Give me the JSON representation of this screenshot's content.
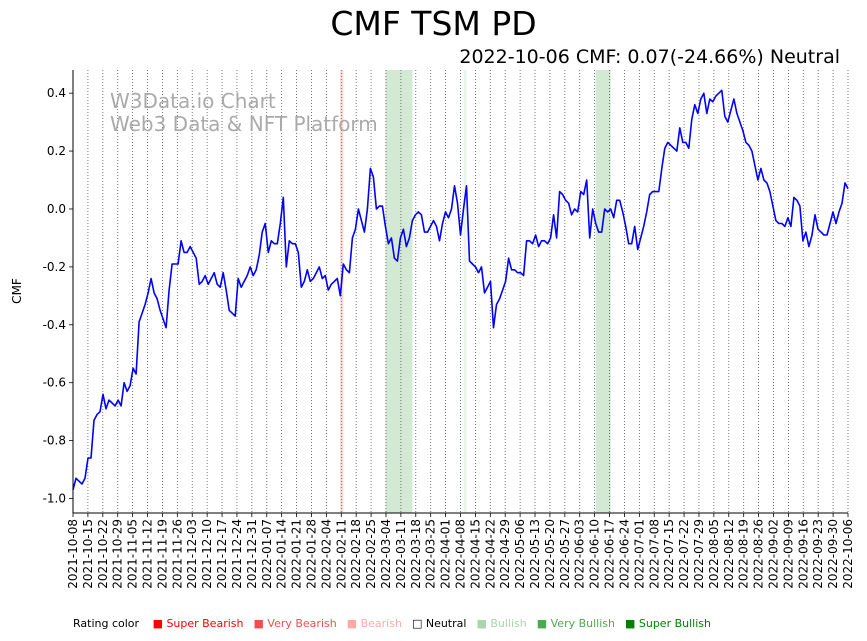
{
  "chart_data": {
    "type": "line",
    "title": "CMF TSM PD",
    "subtitle": "2022-10-06 CMF: 0.07(-24.66%) Neutral",
    "ylabel": "CMF",
    "xlabel": "",
    "ylim": [
      -1.05,
      0.48
    ],
    "yticks": [
      -1.0,
      -0.8,
      -0.6,
      -0.4,
      -0.2,
      0.0,
      0.2,
      0.4
    ],
    "ytick_labels": [
      "-1.0",
      "-0.8",
      "-0.6",
      "-0.4",
      "-0.2",
      "0.0",
      "0.2",
      "0.4"
    ],
    "x_start": "2021-10-08",
    "x_end": "2022-10-06",
    "xtick_labels": [
      "2021-10-08",
      "2021-10-15",
      "2021-10-22",
      "2021-10-29",
      "2021-11-05",
      "2021-11-12",
      "2021-11-19",
      "2021-11-26",
      "2021-12-03",
      "2021-12-10",
      "2021-12-17",
      "2021-12-24",
      "2021-12-31",
      "2022-01-07",
      "2022-01-14",
      "2022-01-21",
      "2022-01-28",
      "2022-02-04",
      "2022-02-11",
      "2022-02-18",
      "2022-02-25",
      "2022-03-04",
      "2022-03-11",
      "2022-03-18",
      "2022-03-25",
      "2022-04-01",
      "2022-04-08",
      "2022-04-15",
      "2022-04-22",
      "2022-04-29",
      "2022-05-06",
      "2022-05-13",
      "2022-05-20",
      "2022-05-27",
      "2022-06-03",
      "2022-06-10",
      "2022-06-17",
      "2022-06-24",
      "2022-07-01",
      "2022-07-08",
      "2022-07-15",
      "2022-07-22",
      "2022-07-29",
      "2022-08-05",
      "2022-08-12",
      "2022-08-19",
      "2022-08-26",
      "2022-09-02",
      "2022-09-09",
      "2022-09-16",
      "2022-09-23",
      "2022-09-30",
      "2022-10-06"
    ],
    "series": [
      {
        "name": "CMF",
        "color": "#0000ff",
        "points": [
          [
            0,
            -0.97
          ],
          [
            1,
            -0.93
          ],
          [
            2,
            -0.94
          ],
          [
            3,
            -0.95
          ],
          [
            4,
            -0.93
          ],
          [
            5,
            -0.86
          ],
          [
            6,
            -0.86
          ],
          [
            7,
            -0.73
          ],
          [
            8,
            -0.71
          ],
          [
            9,
            -0.7
          ],
          [
            10,
            -0.64
          ],
          [
            11,
            -0.69
          ],
          [
            12,
            -0.66
          ],
          [
            13,
            -0.67
          ],
          [
            14,
            -0.68
          ],
          [
            15,
            -0.66
          ],
          [
            16,
            -0.68
          ],
          [
            17,
            -0.6
          ],
          [
            18,
            -0.63
          ],
          [
            19,
            -0.61
          ],
          [
            20,
            -0.55
          ],
          [
            21,
            -0.57
          ],
          [
            22,
            -0.39
          ],
          [
            23,
            -0.36
          ],
          [
            24,
            -0.33
          ],
          [
            25,
            -0.29
          ],
          [
            26,
            -0.24
          ],
          [
            27,
            -0.29
          ],
          [
            28,
            -0.31
          ],
          [
            29,
            -0.35
          ],
          [
            30,
            -0.38
          ],
          [
            31,
            -0.41
          ],
          [
            32,
            -0.28
          ],
          [
            33,
            -0.19
          ],
          [
            34,
            -0.19
          ],
          [
            35,
            -0.19
          ],
          [
            36,
            -0.11
          ],
          [
            37,
            -0.15
          ],
          [
            38,
            -0.15
          ],
          [
            39,
            -0.13
          ],
          [
            40,
            -0.15
          ],
          [
            41,
            -0.17
          ],
          [
            42,
            -0.26
          ],
          [
            43,
            -0.25
          ],
          [
            44,
            -0.23
          ],
          [
            45,
            -0.26
          ],
          [
            46,
            -0.24
          ],
          [
            47,
            -0.22
          ],
          [
            48,
            -0.26
          ],
          [
            49,
            -0.27
          ],
          [
            50,
            -0.22
          ],
          [
            51,
            -0.28
          ],
          [
            52,
            -0.35
          ],
          [
            53,
            -0.36
          ],
          [
            54,
            -0.37
          ],
          [
            55,
            -0.24
          ],
          [
            56,
            -0.27
          ],
          [
            57,
            -0.25
          ],
          [
            58,
            -0.23
          ],
          [
            59,
            -0.2
          ],
          [
            60,
            -0.23
          ],
          [
            61,
            -0.21
          ],
          [
            62,
            -0.16
          ],
          [
            63,
            -0.08
          ],
          [
            64,
            -0.05
          ],
          [
            65,
            -0.15
          ],
          [
            66,
            -0.11
          ],
          [
            67,
            -0.12
          ],
          [
            68,
            -0.12
          ],
          [
            69,
            -0.05
          ],
          [
            70,
            0.04
          ],
          [
            71,
            -0.2
          ],
          [
            72,
            -0.11
          ],
          [
            73,
            -0.12
          ],
          [
            74,
            -0.12
          ],
          [
            75,
            -0.15
          ],
          [
            76,
            -0.27
          ],
          [
            77,
            -0.25
          ],
          [
            78,
            -0.21
          ],
          [
            79,
            -0.25
          ],
          [
            80,
            -0.24
          ],
          [
            81,
            -0.22
          ],
          [
            82,
            -0.2
          ],
          [
            83,
            -0.24
          ],
          [
            84,
            -0.23
          ],
          [
            85,
            -0.28
          ],
          [
            86,
            -0.26
          ],
          [
            87,
            -0.25
          ],
          [
            88,
            -0.24
          ],
          [
            89,
            -0.3
          ],
          [
            90,
            -0.19
          ],
          [
            91,
            -0.21
          ],
          [
            92,
            -0.22
          ],
          [
            93,
            -0.1
          ],
          [
            94,
            -0.07
          ],
          [
            95,
            0.0
          ],
          [
            96,
            -0.04
          ],
          [
            97,
            -0.08
          ],
          [
            98,
            0.0
          ],
          [
            99,
            0.14
          ],
          [
            100,
            0.11
          ],
          [
            101,
            0.0
          ],
          [
            102,
            0.01
          ],
          [
            103,
            0.01
          ],
          [
            104,
            -0.06
          ],
          [
            105,
            -0.12
          ],
          [
            106,
            -0.1
          ],
          [
            107,
            -0.17
          ],
          [
            108,
            -0.18
          ],
          [
            109,
            -0.1
          ],
          [
            110,
            -0.07
          ],
          [
            111,
            -0.13
          ],
          [
            112,
            -0.1
          ],
          [
            113,
            -0.04
          ],
          [
            114,
            -0.02
          ],
          [
            115,
            -0.01
          ],
          [
            116,
            -0.02
          ],
          [
            117,
            -0.08
          ],
          [
            118,
            -0.08
          ],
          [
            119,
            -0.06
          ],
          [
            120,
            -0.04
          ],
          [
            121,
            -0.06
          ],
          [
            122,
            -0.11
          ],
          [
            123,
            -0.05
          ],
          [
            124,
            -0.01
          ],
          [
            125,
            -0.03
          ],
          [
            126,
            0.0
          ],
          [
            127,
            0.08
          ],
          [
            128,
            0.02
          ],
          [
            129,
            -0.09
          ],
          [
            130,
            0.0
          ],
          [
            131,
            0.08
          ],
          [
            132,
            -0.18
          ],
          [
            133,
            -0.19
          ],
          [
            134,
            -0.2
          ],
          [
            135,
            -0.22
          ],
          [
            136,
            -0.2
          ],
          [
            137,
            -0.29
          ],
          [
            138,
            -0.27
          ],
          [
            139,
            -0.25
          ],
          [
            140,
            -0.41
          ],
          [
            141,
            -0.33
          ],
          [
            142,
            -0.31
          ],
          [
            143,
            -0.28
          ],
          [
            144,
            -0.25
          ],
          [
            145,
            -0.17
          ],
          [
            146,
            -0.21
          ],
          [
            147,
            -0.21
          ],
          [
            148,
            -0.22
          ],
          [
            149,
            -0.22
          ],
          [
            150,
            -0.23
          ],
          [
            151,
            -0.11
          ],
          [
            152,
            -0.11
          ],
          [
            153,
            -0.12
          ],
          [
            154,
            -0.09
          ],
          [
            155,
            -0.13
          ],
          [
            156,
            -0.11
          ],
          [
            157,
            -0.11
          ],
          [
            158,
            -0.12
          ],
          [
            159,
            -0.1
          ],
          [
            160,
            -0.02
          ],
          [
            161,
            -0.1
          ],
          [
            162,
            0.06
          ],
          [
            163,
            0.05
          ],
          [
            164,
            0.03
          ],
          [
            165,
            0.02
          ],
          [
            166,
            -0.02
          ],
          [
            167,
            0.0
          ],
          [
            168,
            -0.01
          ],
          [
            169,
            0.06
          ],
          [
            170,
            0.05
          ],
          [
            171,
            0.1
          ],
          [
            172,
            -0.1
          ],
          [
            173,
            0.0
          ],
          [
            174,
            -0.05
          ],
          [
            175,
            -0.08
          ],
          [
            176,
            -0.08
          ],
          [
            177,
            0.0
          ],
          [
            178,
            -0.01
          ],
          [
            179,
            0.0
          ],
          [
            180,
            -0.03
          ],
          [
            181,
            0.03
          ],
          [
            182,
            0.03
          ],
          [
            183,
            -0.01
          ],
          [
            184,
            -0.06
          ],
          [
            185,
            -0.12
          ],
          [
            186,
            -0.12
          ],
          [
            187,
            -0.06
          ],
          [
            188,
            -0.14
          ],
          [
            189,
            -0.1
          ],
          [
            190,
            -0.06
          ],
          [
            191,
            -0.01
          ],
          [
            192,
            0.05
          ],
          [
            193,
            0.06
          ],
          [
            194,
            0.06
          ],
          [
            195,
            0.06
          ],
          [
            196,
            0.14
          ],
          [
            197,
            0.21
          ],
          [
            198,
            0.23
          ],
          [
            199,
            0.22
          ],
          [
            200,
            0.21
          ],
          [
            201,
            0.2
          ],
          [
            202,
            0.28
          ],
          [
            203,
            0.23
          ],
          [
            204,
            0.23
          ],
          [
            205,
            0.21
          ],
          [
            206,
            0.31
          ],
          [
            207,
            0.36
          ],
          [
            208,
            0.33
          ],
          [
            209,
            0.38
          ],
          [
            210,
            0.4
          ],
          [
            211,
            0.33
          ],
          [
            212,
            0.38
          ],
          [
            213,
            0.37
          ],
          [
            214,
            0.39
          ],
          [
            215,
            0.4
          ],
          [
            216,
            0.41
          ],
          [
            217,
            0.32
          ],
          [
            218,
            0.3
          ],
          [
            219,
            0.34
          ],
          [
            220,
            0.38
          ],
          [
            221,
            0.33
          ],
          [
            222,
            0.3
          ],
          [
            223,
            0.27
          ],
          [
            224,
            0.23
          ],
          [
            225,
            0.22
          ],
          [
            226,
            0.2
          ],
          [
            227,
            0.15
          ],
          [
            228,
            0.1
          ],
          [
            229,
            0.14
          ],
          [
            230,
            0.1
          ],
          [
            231,
            0.09
          ],
          [
            232,
            0.06
          ],
          [
            233,
            0.01
          ],
          [
            234,
            -0.04
          ],
          [
            235,
            -0.05
          ],
          [
            236,
            -0.05
          ],
          [
            237,
            -0.06
          ],
          [
            238,
            -0.03
          ],
          [
            239,
            -0.06
          ],
          [
            240,
            0.04
          ],
          [
            241,
            0.03
          ],
          [
            242,
            0.01
          ],
          [
            243,
            -0.11
          ],
          [
            244,
            -0.08
          ],
          [
            245,
            -0.13
          ],
          [
            246,
            -0.09
          ],
          [
            247,
            -0.02
          ],
          [
            248,
            -0.07
          ],
          [
            249,
            -0.08
          ],
          [
            250,
            -0.09
          ],
          [
            251,
            -0.09
          ],
          [
            252,
            -0.05
          ],
          [
            253,
            -0.01
          ],
          [
            254,
            -0.05
          ],
          [
            255,
            -0.01
          ],
          [
            256,
            0.02
          ],
          [
            257,
            0.09
          ],
          [
            258,
            0.07
          ]
        ]
      }
    ],
    "total_points": 259,
    "shaded_regions": [
      {
        "rating": "Bearish",
        "start": 89,
        "end": 90
      },
      {
        "rating": "Very Bullish",
        "start": 104,
        "end": 113
      },
      {
        "rating": "Bullish",
        "start": 130,
        "end": 131
      },
      {
        "rating": "Very Bullish",
        "start": 174,
        "end": 179
      }
    ],
    "rating_colors": {
      "Super Bearish": "#ff0000",
      "Very Bearish": "#f04e4e",
      "Bearish": "#ffaaaa",
      "Neutral": "#ffffff",
      "Bullish": "#aad4aa",
      "Very Bullish": "#4ea94e",
      "Super Bullish": "#008000"
    }
  },
  "watermark": {
    "line1": "W3Data.io Chart",
    "line2": "Web3 Data & NFT Platform"
  },
  "legend": {
    "label": "Rating color",
    "items": [
      {
        "name": "Super Bearish",
        "color": "#ff0000"
      },
      {
        "name": "Very Bearish",
        "color": "#f04e4e"
      },
      {
        "name": "Bearish",
        "color": "#ffaaaa"
      },
      {
        "name": "Neutral",
        "color": "#000000"
      },
      {
        "name": "Bullish",
        "color": "#aad4aa"
      },
      {
        "name": "Very Bullish",
        "color": "#4ea94e"
      },
      {
        "name": "Super Bullish",
        "color": "#008000"
      }
    ]
  }
}
